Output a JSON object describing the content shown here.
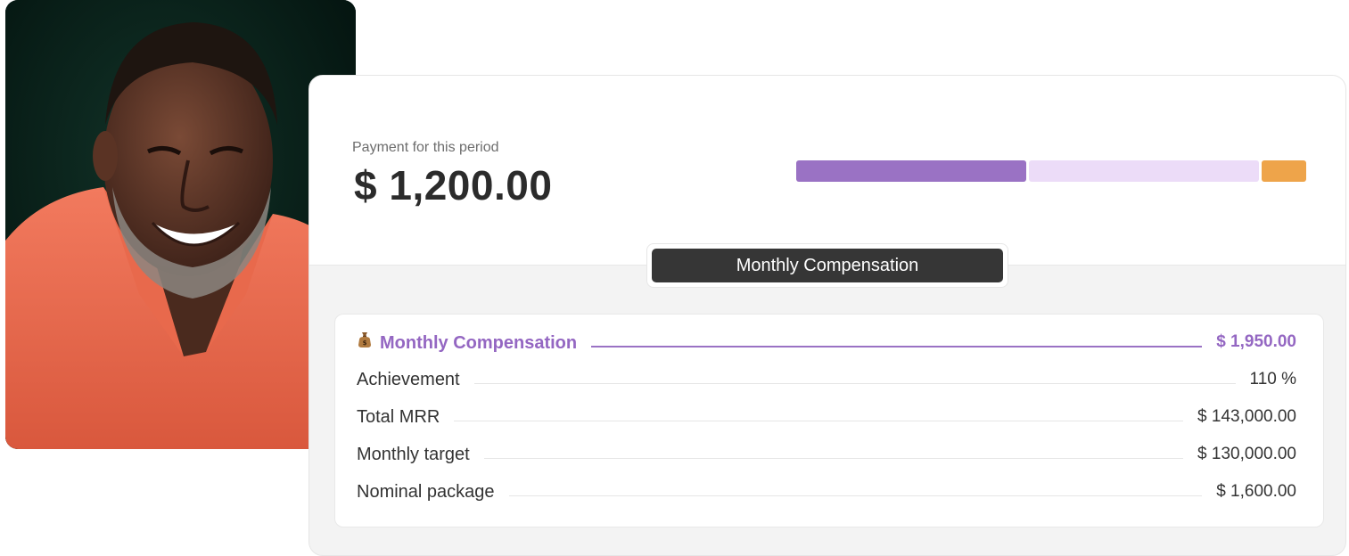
{
  "photo": {
    "alt": "smiling man in coral polo shirt"
  },
  "payment": {
    "label": "Payment for this period",
    "amount": "$ 1,200.00"
  },
  "progress_bar": {
    "segments": [
      {
        "name": "earned",
        "fraction": 0.45,
        "color": "#9a72c4"
      },
      {
        "name": "remaining",
        "fraction": 0.45,
        "color": "#ecdcf8"
      },
      {
        "name": "bonus",
        "fraction": 0.09,
        "color": "#eea44a"
      }
    ]
  },
  "tab": {
    "label": "Monthly Compensation"
  },
  "compensation": {
    "header": {
      "icon": "money-bag-icon",
      "label": "Monthly Compensation",
      "value": "$ 1,950.00"
    },
    "rows": [
      {
        "label": "Achievement",
        "value": "110 %"
      },
      {
        "label": "Total MRR",
        "value": "$ 143,000.00"
      },
      {
        "label": "Monthly target",
        "value": "$ 130,000.00"
      },
      {
        "label": "Nominal package",
        "value": "$ 1,600.00"
      }
    ]
  },
  "colors": {
    "accent": "#9a72c4",
    "accent_light": "#ecdcf8",
    "bonus": "#eea44a",
    "dark_pill": "#363636"
  }
}
